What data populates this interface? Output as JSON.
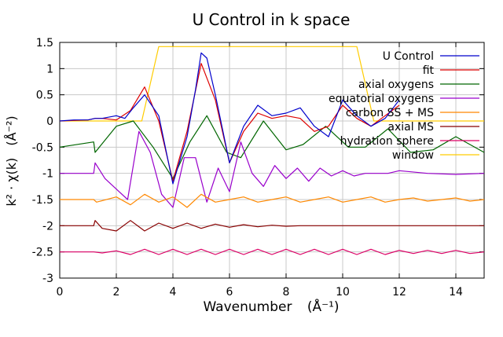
{
  "chart_data": {
    "type": "line",
    "title": "U Control in k space",
    "xlabel": "Wavenumber",
    "xlabel_unit": "(Å⁻¹)",
    "ylabel": "k² · χ(k)",
    "ylabel_unit": "(Å⁻²)",
    "xlim": [
      0,
      15
    ],
    "ylim": [
      -3,
      1.5
    ],
    "xticks": [
      0,
      2,
      4,
      6,
      8,
      10,
      12,
      14
    ],
    "xtick_labels": [
      "0",
      "2",
      "4",
      "6",
      "8",
      "10",
      "12",
      "14"
    ],
    "yticks": [
      1.5,
      1,
      0.5,
      0,
      -0.5,
      -1,
      -1.5,
      -2,
      -2.5,
      -3
    ],
    "ytick_labels": [
      "1.5",
      "1",
      "0.5",
      "0",
      "-0.5",
      "-1",
      "-1.5",
      "-2",
      "-2.5",
      "-3"
    ],
    "grid": true,
    "legend_position": "top-right",
    "series": [
      {
        "name": "U Control",
        "color": "#0000cc",
        "x": [
          0,
          0.5,
          1,
          1.25,
          1.5,
          2,
          2.3,
          2.6,
          3,
          3.5,
          4,
          4.5,
          4.8,
          5,
          5.2,
          5.5,
          6,
          6.5,
          7,
          7.5,
          8,
          8.5,
          9,
          9.5,
          10,
          10.5,
          11,
          11.5,
          12
        ],
        "y": [
          0,
          0.02,
          0.02,
          0.05,
          0.05,
          0.1,
          0.05,
          0.25,
          0.5,
          0.1,
          -1.2,
          -0.3,
          0.6,
          1.3,
          1.2,
          0.5,
          -0.8,
          -0.1,
          0.3,
          0.1,
          0.15,
          0.25,
          -0.1,
          -0.3,
          0.4,
          0.1,
          -0.1,
          0.05,
          0.4
        ]
      },
      {
        "name": "fit",
        "color": "#dd0000",
        "x": [
          0,
          0.5,
          1,
          1.25,
          1.5,
          2,
          2.5,
          3,
          3.5,
          4,
          4.5,
          5,
          5.5,
          6,
          6.5,
          7,
          7.5,
          8,
          8.5,
          9,
          9.5,
          10,
          10.5,
          11,
          11.5,
          12
        ],
        "y": [
          0,
          0.01,
          0.02,
          0.05,
          0.05,
          0.02,
          0.2,
          0.65,
          0.0,
          -1.15,
          -0.2,
          1.1,
          0.4,
          -0.8,
          -0.2,
          0.15,
          0.05,
          0.1,
          0.05,
          -0.2,
          -0.1,
          0.3,
          0.05,
          -0.1,
          0.1,
          0.3
        ]
      },
      {
        "name": "axial oxygens",
        "color": "#006600",
        "x": [
          0,
          1.2,
          1.25,
          2,
          2.6,
          3.3,
          4,
          4.6,
          5.2,
          5.9,
          6.4,
          7.2,
          8,
          8.6,
          9.4,
          10.2,
          10.8,
          11.6,
          12.4,
          13.2,
          14,
          15
        ],
        "y": [
          -0.5,
          -0.4,
          -0.6,
          -0.1,
          0.0,
          -0.5,
          -1.1,
          -0.4,
          0.1,
          -0.6,
          -0.7,
          0.0,
          -0.55,
          -0.45,
          -0.1,
          -0.5,
          -0.5,
          -0.15,
          -0.6,
          -0.55,
          -0.3,
          -0.6
        ]
      },
      {
        "name": "equatorial oxygens",
        "color": "#9900cc",
        "x": [
          0,
          1.2,
          1.25,
          1.6,
          2,
          2.4,
          2.8,
          3.2,
          3.6,
          4,
          4.4,
          4.8,
          5.2,
          5.6,
          6,
          6.4,
          6.8,
          7.2,
          7.6,
          8,
          8.4,
          8.8,
          9.2,
          9.6,
          10,
          10.4,
          10.8,
          11.2,
          11.6,
          12,
          13,
          14,
          15
        ],
        "y": [
          -1,
          -1,
          -0.8,
          -1.1,
          -1.3,
          -1.5,
          -0.2,
          -0.6,
          -1.4,
          -1.65,
          -0.7,
          -0.7,
          -1.55,
          -0.9,
          -1.35,
          -0.4,
          -1.0,
          -1.25,
          -0.85,
          -1.1,
          -0.9,
          -1.15,
          -0.9,
          -1.05,
          -0.95,
          -1.05,
          -1.0,
          -1.0,
          -1.0,
          -0.95,
          -1.0,
          -1.02,
          -1.0
        ]
      },
      {
        "name": "carbon SS + MS",
        "color": "#ff8800",
        "x": [
          0,
          1.2,
          1.3,
          2,
          2.5,
          3,
          3.5,
          4,
          4.5,
          5,
          5.5,
          6,
          6.5,
          7,
          7.5,
          8,
          8.5,
          9,
          9.5,
          10,
          10.5,
          11,
          11.5,
          12,
          12.5,
          13,
          13.5,
          14,
          14.5,
          15
        ],
        "y": [
          -1.5,
          -1.5,
          -1.55,
          -1.45,
          -1.6,
          -1.4,
          -1.55,
          -1.45,
          -1.65,
          -1.4,
          -1.55,
          -1.5,
          -1.45,
          -1.55,
          -1.5,
          -1.45,
          -1.55,
          -1.5,
          -1.45,
          -1.55,
          -1.5,
          -1.45,
          -1.55,
          -1.5,
          -1.47,
          -1.53,
          -1.5,
          -1.47,
          -1.53,
          -1.5
        ]
      },
      {
        "name": "axial MS",
        "color": "#880000",
        "x": [
          0,
          1.2,
          1.25,
          1.5,
          2,
          2.5,
          3,
          3.5,
          4,
          4.5,
          5,
          5.5,
          6,
          6.5,
          7,
          7.5,
          8,
          8.5,
          9,
          9.5,
          10,
          11,
          12,
          13,
          14,
          15
        ],
        "y": [
          -2,
          -2,
          -1.9,
          -2.05,
          -2.1,
          -1.9,
          -2.1,
          -1.95,
          -2.05,
          -1.95,
          -2.05,
          -1.97,
          -2.03,
          -1.98,
          -2.02,
          -1.99,
          -2.01,
          -2,
          -2,
          -2,
          -2,
          -2,
          -2,
          -2,
          -2,
          -2
        ]
      },
      {
        "name": "hydration sphere",
        "color": "#dd0066",
        "x": [
          0,
          1.2,
          1.5,
          2,
          2.5,
          3,
          3.5,
          4,
          4.5,
          5,
          5.5,
          6,
          6.5,
          7,
          7.5,
          8,
          8.5,
          9,
          9.5,
          10,
          10.5,
          11,
          11.5,
          12,
          12.5,
          13,
          13.5,
          14,
          14.5,
          15
        ],
        "y": [
          -2.5,
          -2.5,
          -2.52,
          -2.48,
          -2.55,
          -2.45,
          -2.55,
          -2.45,
          -2.55,
          -2.45,
          -2.55,
          -2.45,
          -2.55,
          -2.45,
          -2.55,
          -2.45,
          -2.55,
          -2.45,
          -2.55,
          -2.45,
          -2.55,
          -2.45,
          -2.55,
          -2.47,
          -2.53,
          -2.47,
          -2.53,
          -2.47,
          -2.53,
          -2.5
        ]
      },
      {
        "name": "window",
        "color": "#ffcc00",
        "x": [
          0,
          2.9,
          3.5,
          10.5,
          11.1,
          15
        ],
        "y": [
          0,
          0,
          1.42,
          1.42,
          0,
          0
        ]
      }
    ]
  }
}
